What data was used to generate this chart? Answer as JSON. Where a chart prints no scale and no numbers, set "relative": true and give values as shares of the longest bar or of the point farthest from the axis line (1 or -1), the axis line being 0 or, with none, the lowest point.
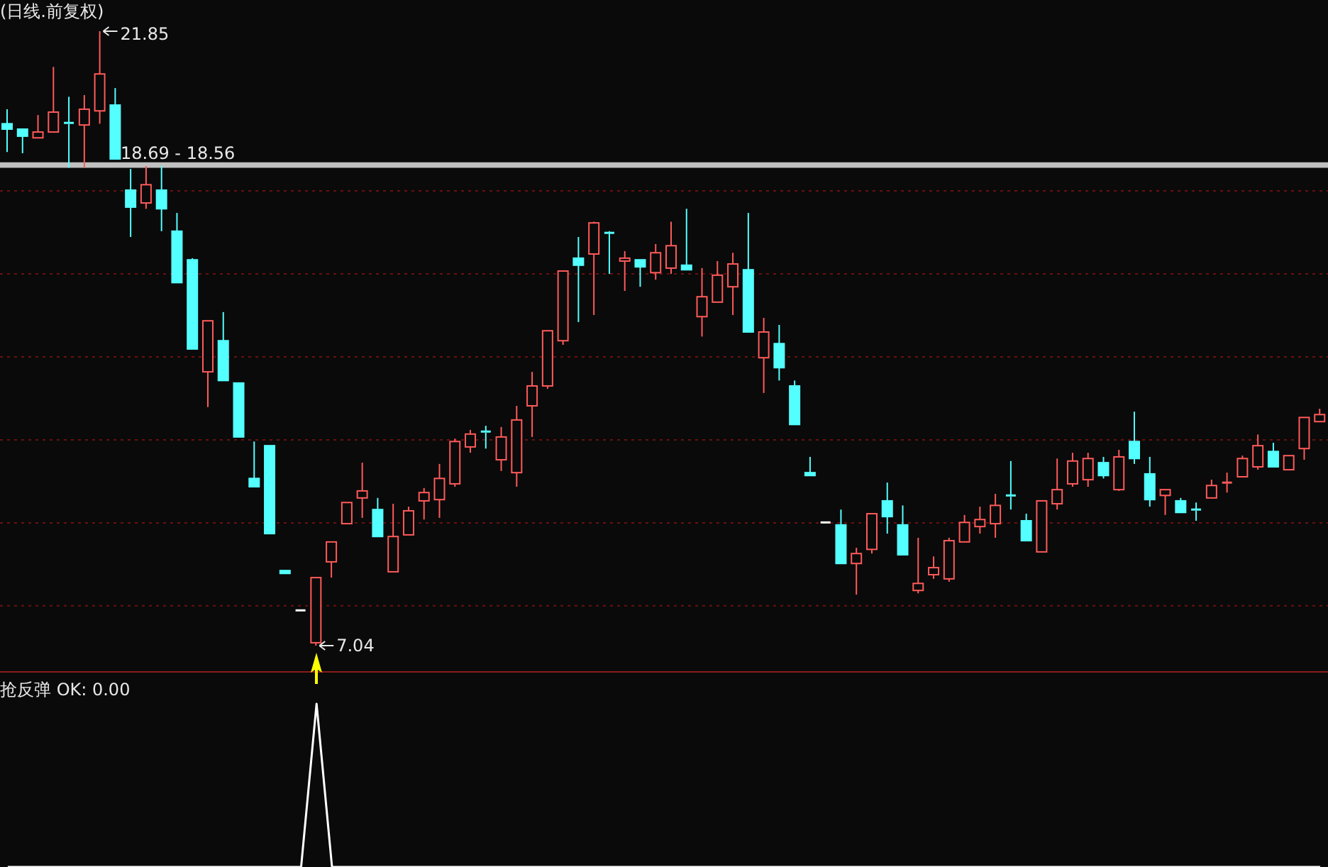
{
  "chart_data": [
    {
      "type": "candlestick",
      "title": "(日线.前复权)",
      "categories": [
        null,
        null,
        null,
        null,
        null,
        null,
        null,
        null,
        null,
        null,
        null,
        null,
        null,
        null,
        null,
        null,
        null,
        null,
        null,
        null,
        null,
        null,
        null,
        null,
        null,
        null,
        null,
        null,
        null,
        null,
        null,
        null,
        null,
        null,
        null,
        null,
        null,
        null,
        null,
        null,
        null,
        null,
        null,
        null,
        null,
        null,
        null,
        null,
        null,
        null,
        null,
        null,
        null,
        null,
        null,
        null,
        null,
        null,
        null,
        null,
        null,
        null,
        null,
        null,
        null,
        null,
        null,
        null,
        null,
        null,
        null,
        null,
        null,
        null,
        null,
        null,
        null,
        null,
        null,
        null,
        null,
        null,
        null,
        null,
        null,
        null
      ],
      "ohlc": [
        [
          19.62,
          19.97,
          18.94,
          19.49
        ],
        [
          19.49,
          19.49,
          18.91,
          19.32
        ],
        [
          19.28,
          19.83,
          19.28,
          19.42
        ],
        [
          19.42,
          20.99,
          19.42,
          19.9
        ],
        [
          19.64,
          20.27,
          18.56,
          19.61
        ],
        [
          19.59,
          20.31,
          18.56,
          19.97
        ],
        [
          19.93,
          21.85,
          19.62,
          20.82
        ],
        [
          20.07,
          20.48,
          18.77,
          18.77
        ],
        [
          18.02,
          18.53,
          16.89,
          17.61
        ],
        [
          17.71,
          18.6,
          17.57,
          18.15
        ],
        [
          18.02,
          18.6,
          17.03,
          17.57
        ],
        [
          17.03,
          17.47,
          15.79,
          15.79
        ],
        [
          16.34,
          16.38,
          14.19,
          14.19
        ],
        [
          13.64,
          14.87,
          12.79,
          14.87
        ],
        [
          14.39,
          15.08,
          13.43,
          13.43
        ],
        [
          13.37,
          13.37,
          12.07,
          12.07
        ],
        [
          11.07,
          11.96,
          10.87,
          10.87
        ],
        [
          11.86,
          11.86,
          9.74,
          9.74
        ],
        [
          8.85,
          8.85,
          8.78,
          8.78
        ],
        [
          7.89,
          7.89,
          7.89,
          7.89
        ],
        [
          7.11,
          8.68,
          7.04,
          8.68
        ],
        [
          9.06,
          9.54,
          8.68,
          9.54
        ],
        [
          9.98,
          10.49,
          9.98,
          10.49
        ],
        [
          10.6,
          11.45,
          10.12,
          10.77
        ],
        [
          10.32,
          10.6,
          9.67,
          9.67
        ],
        [
          8.82,
          10.46,
          8.82,
          9.67
        ],
        [
          9.71,
          10.39,
          9.71,
          10.29
        ],
        [
          10.53,
          10.84,
          10.08,
          10.73
        ],
        [
          10.56,
          11.42,
          10.12,
          11.07
        ],
        [
          10.94,
          12.03,
          10.87,
          11.96
        ],
        [
          11.83,
          12.24,
          11.69,
          12.14
        ],
        [
          12.2,
          12.34,
          11.79,
          12.17
        ],
        [
          11.52,
          12.31,
          11.25,
          12.07
        ],
        [
          11.21,
          12.82,
          10.87,
          12.48
        ],
        [
          12.82,
          13.64,
          12.07,
          13.3
        ],
        [
          13.3,
          14.63,
          13.23,
          14.63
        ],
        [
          14.39,
          16.07,
          14.29,
          16.07
        ],
        [
          16.38,
          16.89,
          14.84,
          16.21
        ],
        [
          16.48,
          17.26,
          15.01,
          17.23
        ],
        [
          16.99,
          17.03,
          16.0,
          16.97
        ],
        [
          16.31,
          16.55,
          15.59,
          16.38
        ],
        [
          16.34,
          16.34,
          15.69,
          16.17
        ],
        [
          16.03,
          16.72,
          15.86,
          16.51
        ],
        [
          16.14,
          17.26,
          16.0,
          16.68
        ],
        [
          16.21,
          17.57,
          16.1,
          16.1
        ],
        [
          14.97,
          16.14,
          14.49,
          15.45
        ],
        [
          15.32,
          16.31,
          15.32,
          15.97
        ],
        [
          15.69,
          16.51,
          15.01,
          16.24
        ],
        [
          16.1,
          17.47,
          14.6,
          14.6
        ],
        [
          13.98,
          14.94,
          13.13,
          14.6
        ],
        [
          14.32,
          14.77,
          13.43,
          13.74
        ],
        [
          13.3,
          13.43,
          12.37,
          12.37
        ],
        [
          11.21,
          11.59,
          11.14,
          11.14
        ],
        [
          10.01,
          10.01,
          10.01,
          10.01
        ],
        [
          9.95,
          10.32,
          9.02,
          9.02
        ],
        [
          9.02,
          9.4,
          8.27,
          9.26
        ],
        [
          9.36,
          10.22,
          9.26,
          10.22
        ],
        [
          10.53,
          10.97,
          9.74,
          10.15
        ],
        [
          9.95,
          10.42,
          9.23,
          9.23
        ],
        [
          8.37,
          9.64,
          8.3,
          8.54
        ],
        [
          8.75,
          9.19,
          8.65,
          8.92
        ],
        [
          8.65,
          9.64,
          8.58,
          9.57
        ],
        [
          9.54,
          10.19,
          9.54,
          10.01
        ],
        [
          9.91,
          10.39,
          9.74,
          10.08
        ],
        [
          9.98,
          10.7,
          9.64,
          10.42
        ],
        [
          10.66,
          11.49,
          10.32,
          10.63
        ],
        [
          10.05,
          10.22,
          9.57,
          9.57
        ],
        [
          9.3,
          10.53,
          9.3,
          10.53
        ],
        [
          10.46,
          11.55,
          10.32,
          10.8
        ],
        [
          10.94,
          11.69,
          10.87,
          11.49
        ],
        [
          11.04,
          11.69,
          10.87,
          11.55
        ],
        [
          11.45,
          11.59,
          11.07,
          11.14
        ],
        [
          10.8,
          11.76,
          10.77,
          11.59
        ],
        [
          11.96,
          12.68,
          11.42,
          11.55
        ],
        [
          11.18,
          11.59,
          10.39,
          10.56
        ],
        [
          10.66,
          10.8,
          10.19,
          10.8
        ],
        [
          10.53,
          10.6,
          10.25,
          10.25
        ],
        [
          10.32,
          10.49,
          10.05,
          10.29
        ],
        [
          10.6,
          11.04,
          10.6,
          10.9
        ],
        [
          10.95,
          11.21,
          10.73,
          10.97
        ],
        [
          11.11,
          11.62,
          11.11,
          11.55
        ],
        [
          11.35,
          12.13,
          11.28,
          11.86
        ],
        [
          11.72,
          11.93,
          11.35,
          11.35
        ],
        [
          11.28,
          11.62,
          11.28,
          11.62
        ],
        [
          11.79,
          12.54,
          11.52,
          12.54
        ],
        [
          12.44,
          12.75,
          12.44,
          12.61
        ]
      ],
      "colors": [
        "#54ffff",
        "#54ffff",
        "#ff5a5a",
        "#ff5a5a",
        "#54ffff",
        "#ff5a5a",
        "#ff5a5a",
        "#54ffff",
        "#54ffff",
        "#ff5a5a",
        "#54ffff",
        "#54ffff",
        "#54ffff",
        "#ff5a5a",
        "#54ffff",
        "#54ffff",
        "#54ffff",
        "#54ffff",
        "#54ffff",
        "#ffffff",
        "#ff5a5a",
        "#ff5a5a",
        "#ff5a5a",
        "#ff5a5a",
        "#54ffff",
        "#ff5a5a",
        "#ff5a5a",
        "#ff5a5a",
        "#ff5a5a",
        "#ff5a5a",
        "#ff5a5a",
        "#54ffff",
        "#ff5a5a",
        "#ff5a5a",
        "#ff5a5a",
        "#ff5a5a",
        "#ff5a5a",
        "#54ffff",
        "#ff5a5a",
        "#54ffff",
        "#ff5a5a",
        "#54ffff",
        "#ff5a5a",
        "#ff5a5a",
        "#54ffff",
        "#ff5a5a",
        "#ff5a5a",
        "#ff5a5a",
        "#54ffff",
        "#ff5a5a",
        "#54ffff",
        "#54ffff",
        "#54ffff",
        "#ffffff",
        "#54ffff",
        "#ff5a5a",
        "#ff5a5a",
        "#54ffff",
        "#54ffff",
        "#ff5a5a",
        "#ff5a5a",
        "#ff5a5a",
        "#ff5a5a",
        "#ff5a5a",
        "#ff5a5a",
        "#54ffff",
        "#54ffff",
        "#ff5a5a",
        "#ff5a5a",
        "#ff5a5a",
        "#ff5a5a",
        "#54ffff",
        "#ff5a5a",
        "#54ffff",
        "#54ffff",
        "#ff5a5a",
        "#54ffff",
        "#54ffff",
        "#ff5a5a",
        "#ff5a5a",
        "#ff5a5a",
        "#ff5a5a",
        "#54ffff",
        "#ff5a5a",
        "#ff5a5a",
        "#ff5a5a"
      ],
      "yticks": [
        {
          "value": 8,
          "label": null
        },
        {
          "value": 10,
          "label": null
        },
        {
          "value": 12,
          "label": null
        },
        {
          "value": 14,
          "label": null
        },
        {
          "value": 16,
          "label": null
        },
        {
          "value": 18,
          "label": null
        }
      ],
      "tick_labels": false,
      "grid": "y",
      "bands": [
        {
          "axis": "y",
          "from": 18.56,
          "to": 18.69,
          "label": "18.69 - 18.56",
          "color": "#c0c0c0"
        }
      ],
      "annotations": [
        "21.85",
        "7.04"
      ]
    },
    {
      "type": "line",
      "title": "抢反弹 OK: 0.00",
      "relative": true,
      "color": "#ffffff",
      "categories": [
        null,
        null,
        null,
        null,
        null,
        null,
        null,
        null,
        null,
        null,
        null,
        null,
        null,
        null,
        null,
        null,
        null,
        null,
        null,
        null,
        null,
        null,
        null,
        null,
        null,
        null,
        null,
        null,
        null,
        null,
        null,
        null,
        null,
        null,
        null,
        null,
        null,
        null,
        null,
        null,
        null,
        null,
        null,
        null,
        null,
        null,
        null,
        null,
        null,
        null,
        null,
        null,
        null,
        null,
        null,
        null,
        null,
        null,
        null,
        null,
        null,
        null,
        null,
        null,
        null,
        null,
        null,
        null,
        null,
        null,
        null,
        null,
        null,
        null,
        null,
        null,
        null,
        null,
        null,
        null,
        null,
        null,
        null,
        null,
        null,
        null
      ],
      "values": [
        0,
        0,
        0,
        0,
        0,
        0,
        0,
        0,
        0,
        0,
        0,
        0,
        0,
        0,
        0,
        0,
        0,
        0,
        0,
        0,
        1,
        0,
        0,
        0,
        0,
        0,
        0,
        0,
        0,
        0,
        0,
        0,
        0,
        0,
        0,
        0,
        0,
        0,
        0,
        0,
        0,
        0,
        0,
        0,
        0,
        0,
        0,
        0,
        0,
        0,
        0,
        0,
        0,
        0,
        0,
        0,
        0,
        0,
        0,
        0,
        0,
        0,
        0,
        0,
        0,
        0,
        0,
        0,
        0,
        0,
        0,
        0,
        0,
        0,
        0,
        0,
        0,
        0,
        0,
        0,
        0,
        0,
        0,
        0,
        0,
        0
      ]
    }
  ]
}
